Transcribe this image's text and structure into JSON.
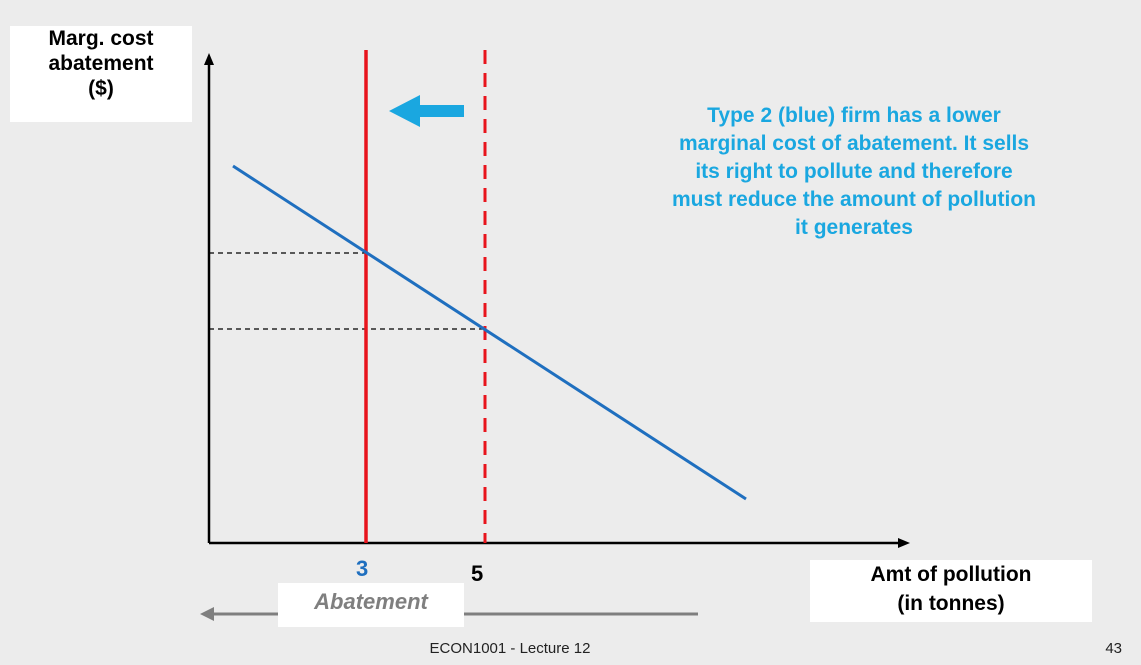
{
  "axes": {
    "ylabel_lines": [
      "Marg. cost",
      "abatement",
      "($)"
    ],
    "xlabel_lines": [
      "Amt of pollution",
      "(in tonnes)"
    ]
  },
  "ticks": {
    "firm2_quantity": "3",
    "initial_quantity": "5"
  },
  "abatement_label": "Abatement",
  "annotation_lines": [
    "Type 2 (blue) firm has a lower",
    "marginal cost of abatement.  It sells",
    "its right to pollute and therefore",
    "must reduce the amount of pollution",
    "it generates"
  ],
  "footer": {
    "text": "ECON1001 - Lecture 12",
    "page": "43"
  },
  "colors": {
    "mc_curve": "#1f6fbf",
    "permit_lines": "#e8141c",
    "arrow": "#1aa7e0",
    "abatement_arrow": "#7f7f7f"
  }
}
